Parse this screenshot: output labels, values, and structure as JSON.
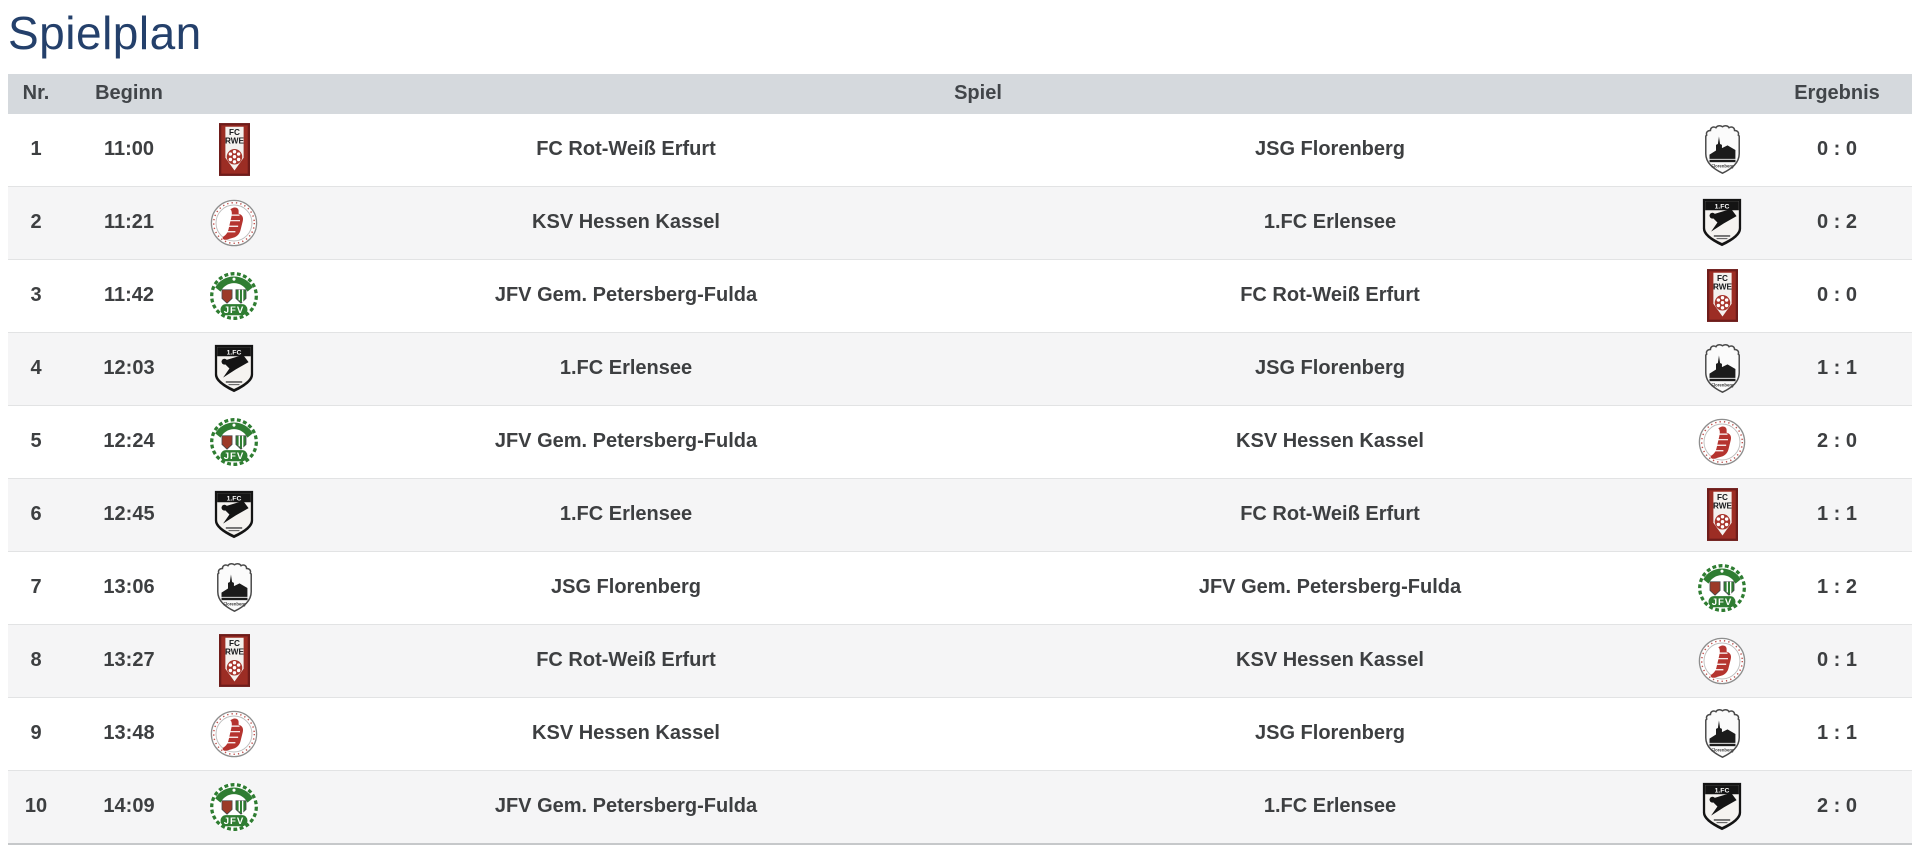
{
  "page_title": "Spielplan",
  "colors": {
    "title": "#24406b",
    "header_bg": "#d5d9dd",
    "header_text": "#414549",
    "row_text": "#3d3f41",
    "row_alt_bg": "#f5f5f6",
    "divider": "#e2e3e4",
    "bottom_border": "#c6c8ca"
  },
  "table": {
    "headers": {
      "nr": "Nr.",
      "beginn": "Beginn",
      "spiel": "Spiel",
      "ergebnis": "Ergebnis"
    },
    "rows": [
      {
        "nr": "1",
        "time": "11:00",
        "home": {
          "name": "FC Rot-Weiß Erfurt",
          "logo": "fc-rot-weiss-erfurt"
        },
        "away": {
          "name": "JSG Florenberg",
          "logo": "jsg-florenberg"
        },
        "result": "0 : 0"
      },
      {
        "nr": "2",
        "time": "11:21",
        "home": {
          "name": "KSV Hessen Kassel",
          "logo": "ksv-hessen-kassel"
        },
        "away": {
          "name": "1.FC Erlensee",
          "logo": "1-fc-erlensee"
        },
        "result": "0 : 2"
      },
      {
        "nr": "3",
        "time": "11:42",
        "home": {
          "name": "JFV Gem. Petersberg-Fulda",
          "logo": "jfv-gem-petersberg-fulda"
        },
        "away": {
          "name": "FC Rot-Weiß Erfurt",
          "logo": "fc-rot-weiss-erfurt"
        },
        "result": "0 : 0"
      },
      {
        "nr": "4",
        "time": "12:03",
        "home": {
          "name": "1.FC Erlensee",
          "logo": "1-fc-erlensee"
        },
        "away": {
          "name": "JSG Florenberg",
          "logo": "jsg-florenberg"
        },
        "result": "1 : 1"
      },
      {
        "nr": "5",
        "time": "12:24",
        "home": {
          "name": "JFV Gem. Petersberg-Fulda",
          "logo": "jfv-gem-petersberg-fulda"
        },
        "away": {
          "name": "KSV Hessen Kassel",
          "logo": "ksv-hessen-kassel"
        },
        "result": "2 : 0"
      },
      {
        "nr": "6",
        "time": "12:45",
        "home": {
          "name": "1.FC Erlensee",
          "logo": "1-fc-erlensee"
        },
        "away": {
          "name": "FC Rot-Weiß Erfurt",
          "logo": "fc-rot-weiss-erfurt"
        },
        "result": "1 : 1"
      },
      {
        "nr": "7",
        "time": "13:06",
        "home": {
          "name": "JSG Florenberg",
          "logo": "jsg-florenberg"
        },
        "away": {
          "name": "JFV Gem. Petersberg-Fulda",
          "logo": "jfv-gem-petersberg-fulda"
        },
        "result": "1 : 2"
      },
      {
        "nr": "8",
        "time": "13:27",
        "home": {
          "name": "FC Rot-Weiß Erfurt",
          "logo": "fc-rot-weiss-erfurt"
        },
        "away": {
          "name": "KSV Hessen Kassel",
          "logo": "ksv-hessen-kassel"
        },
        "result": "0 : 1"
      },
      {
        "nr": "9",
        "time": "13:48",
        "home": {
          "name": "KSV Hessen Kassel",
          "logo": "ksv-hessen-kassel"
        },
        "away": {
          "name": "JSG Florenberg",
          "logo": "jsg-florenberg"
        },
        "result": "1 : 1"
      },
      {
        "nr": "10",
        "time": "14:09",
        "home": {
          "name": "JFV Gem. Petersberg-Fulda",
          "logo": "jfv-gem-petersberg-fulda"
        },
        "away": {
          "name": "1.FC Erlensee",
          "logo": "1-fc-erlensee"
        },
        "result": "2 : 0"
      }
    ]
  }
}
